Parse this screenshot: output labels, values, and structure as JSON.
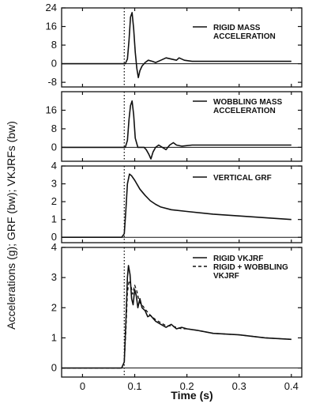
{
  "figure": {
    "ylabel": "Accelerations (g); GRF (bw); VKJRFs (bw)",
    "xlabel": "Time (s)"
  },
  "chart_data": [
    {
      "type": "line",
      "legend": [
        "RIGID MASS",
        "ACCELERATION"
      ],
      "yticks": [
        -8,
        0,
        8,
        16,
        24
      ],
      "ylim": [
        -10,
        24
      ],
      "xlim": [
        -0.04,
        0.42
      ],
      "grid": false,
      "legend_position": "top-right",
      "series": [
        {
          "line_style": "solid",
          "x": [
            -0.04,
            0.075,
            0.082,
            0.086,
            0.089,
            0.092,
            0.095,
            0.098,
            0.101,
            0.104,
            0.107,
            0.11,
            0.114,
            0.12,
            0.126,
            0.134,
            0.14,
            0.15,
            0.16,
            0.17,
            0.18,
            0.185,
            0.195,
            0.21,
            0.25,
            0.3,
            0.4
          ],
          "y": [
            0,
            0,
            0,
            2,
            10,
            20,
            22,
            15,
            5,
            -2,
            -6,
            -3,
            -1,
            0.5,
            1.5,
            1,
            0.5,
            1.5,
            2.5,
            2,
            1.5,
            2.5,
            1.5,
            1,
            1,
            1,
            1
          ]
        }
      ]
    },
    {
      "type": "line",
      "legend": [
        "WOBBLING MASS",
        "ACCELERATION"
      ],
      "yticks": [
        0,
        8,
        16
      ],
      "ylim": [
        -6,
        24
      ],
      "xlim": [
        -0.04,
        0.42
      ],
      "grid": false,
      "legend_position": "top-right",
      "series": [
        {
          "line_style": "solid",
          "x": [
            -0.04,
            0.075,
            0.082,
            0.086,
            0.089,
            0.092,
            0.095,
            0.098,
            0.101,
            0.106,
            0.112,
            0.118,
            0.122,
            0.127,
            0.131,
            0.135,
            0.14,
            0.146,
            0.153,
            0.16,
            0.167,
            0.174,
            0.18,
            0.19,
            0.21,
            0.25,
            0.3,
            0.4
          ],
          "y": [
            0,
            0,
            0,
            3,
            12,
            18,
            20,
            14,
            4,
            0,
            0,
            0,
            -1,
            -3,
            -5,
            -2,
            0,
            1,
            0,
            -1,
            1,
            2,
            1,
            0.5,
            1,
            1,
            1,
            1
          ]
        }
      ]
    },
    {
      "type": "line",
      "legend": [
        "VERTICAL GRF"
      ],
      "yticks": [
        0,
        1,
        2,
        3,
        4
      ],
      "ylim": [
        -0.3,
        4
      ],
      "xlim": [
        -0.04,
        0.42
      ],
      "grid": false,
      "legend_position": "top-right",
      "series": [
        {
          "line_style": "solid",
          "x": [
            -0.04,
            0.075,
            0.08,
            0.083,
            0.086,
            0.09,
            0.094,
            0.1,
            0.11,
            0.12,
            0.13,
            0.14,
            0.15,
            0.17,
            0.2,
            0.25,
            0.3,
            0.35,
            0.4
          ],
          "y": [
            0,
            0,
            0.2,
            1.5,
            3.0,
            3.55,
            3.45,
            3.2,
            2.7,
            2.35,
            2.05,
            1.85,
            1.7,
            1.55,
            1.45,
            1.3,
            1.2,
            1.1,
            1.0
          ]
        }
      ]
    },
    {
      "type": "line",
      "legend": [
        "RIGID VKJRF",
        "RIGID + WOBBLING",
        "VKJRF"
      ],
      "yticks": [
        0,
        1,
        2,
        3,
        4
      ],
      "ylim": [
        -0.3,
        4
      ],
      "xlim": [
        -0.04,
        0.42
      ],
      "grid": false,
      "legend_position": "top-right",
      "series": [
        {
          "line_style": "solid",
          "x": [
            -0.04,
            0.075,
            0.08,
            0.083,
            0.086,
            0.088,
            0.091,
            0.094,
            0.097,
            0.1,
            0.103,
            0.106,
            0.11,
            0.114,
            0.12,
            0.125,
            0.13,
            0.14,
            0.15,
            0.16,
            0.17,
            0.18,
            0.19,
            0.2,
            0.22,
            0.25,
            0.3,
            0.35,
            0.4
          ],
          "y": [
            0,
            0,
            0.2,
            1.5,
            3.0,
            3.4,
            3.1,
            2.3,
            2.1,
            2.6,
            2.4,
            2.0,
            2.3,
            2.0,
            1.9,
            1.7,
            1.75,
            1.55,
            1.45,
            1.35,
            1.45,
            1.3,
            1.35,
            1.3,
            1.25,
            1.15,
            1.1,
            1.0,
            0.95
          ]
        },
        {
          "line_style": "dashed",
          "x": [
            -0.04,
            0.075,
            0.08,
            0.083,
            0.086,
            0.089,
            0.092,
            0.096,
            0.1,
            0.104,
            0.108,
            0.112,
            0.116,
            0.12,
            0.13,
            0.14,
            0.15,
            0.16,
            0.17,
            0.18,
            0.19,
            0.2,
            0.22,
            0.25,
            0.3,
            0.35,
            0.4
          ],
          "y": [
            0,
            0,
            0.2,
            1.2,
            2.5,
            2.9,
            2.8,
            2.45,
            2.75,
            2.55,
            2.25,
            2.1,
            2.05,
            1.95,
            1.75,
            1.6,
            1.5,
            1.4,
            1.4,
            1.35,
            1.3,
            1.3,
            1.25,
            1.15,
            1.1,
            1.0,
            0.95
          ]
        }
      ],
      "xticks": [
        0,
        0.1,
        0.2,
        0.3,
        0.4
      ],
      "xticklabels": [
        "0",
        "0.1",
        "0.2",
        "0.3",
        "0.4"
      ]
    }
  ],
  "marker_line": {
    "x": 0.08,
    "style": "dotted"
  }
}
